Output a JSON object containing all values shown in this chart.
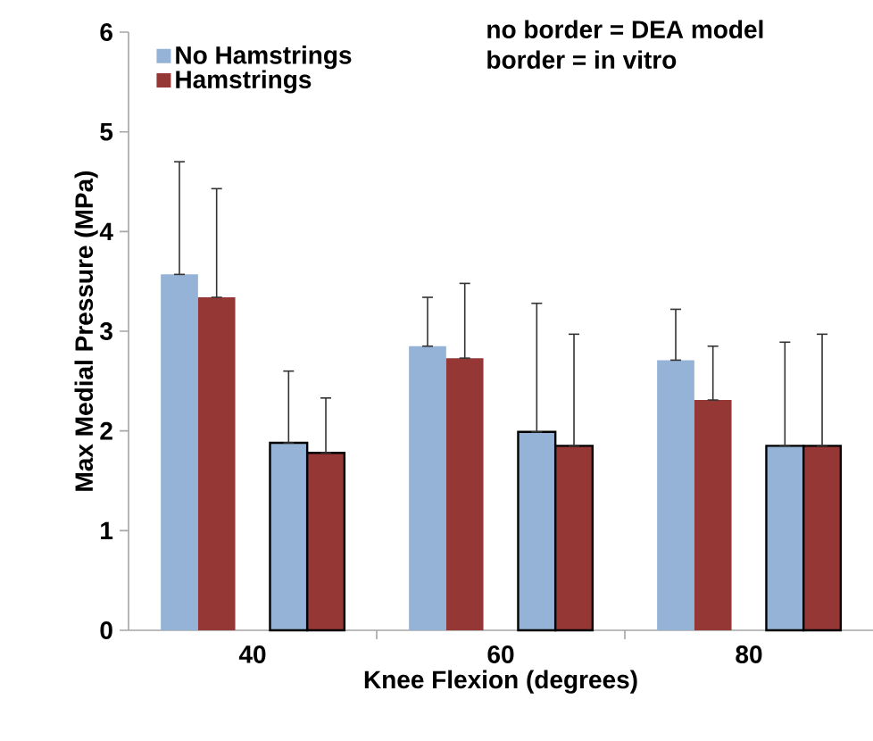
{
  "chart_data": {
    "type": "bar",
    "xlabel": "Knee Flexion (degrees)",
    "ylabel": "Max Medial Pressure (MPa)",
    "categories": [
      "40",
      "60",
      "80"
    ],
    "series": [
      {
        "name": "No Hamstrings",
        "color": "#95b3d7",
        "values": [
          3.57,
          2.85,
          2.71
        ],
        "errors": [
          [
            3.57,
            4.7
          ],
          [
            2.85,
            3.34
          ],
          [
            2.71,
            3.22
          ]
        ]
      },
      {
        "name": "Hamstrings",
        "color": "#953735",
        "values": [
          3.34,
          2.73,
          2.31
        ],
        "errors": [
          [
            3.34,
            4.43
          ],
          [
            2.73,
            3.48
          ],
          [
            2.31,
            2.85
          ]
        ]
      },
      {
        "color": "#95b3d7",
        "values": [
          1.88,
          1.99,
          1.85
        ],
        "errors": [
          [
            1.88,
            2.6
          ],
          [
            1.99,
            3.28
          ],
          [
            1.85,
            2.89
          ]
        ]
      },
      {
        "color": "#953735",
        "values": [
          1.78,
          1.85,
          1.85
        ],
        "errors": [
          [
            1.78,
            2.33
          ],
          [
            1.85,
            2.97
          ],
          [
            1.85,
            2.97
          ]
        ]
      }
    ],
    "ylim": [
      0,
      6
    ],
    "yticks": [
      0,
      1,
      2,
      3,
      4,
      5,
      6
    ],
    "grid": false,
    "legend": "top left",
    "annotations": [
      "no border = DEA model",
      "border = in vitro"
    ]
  }
}
